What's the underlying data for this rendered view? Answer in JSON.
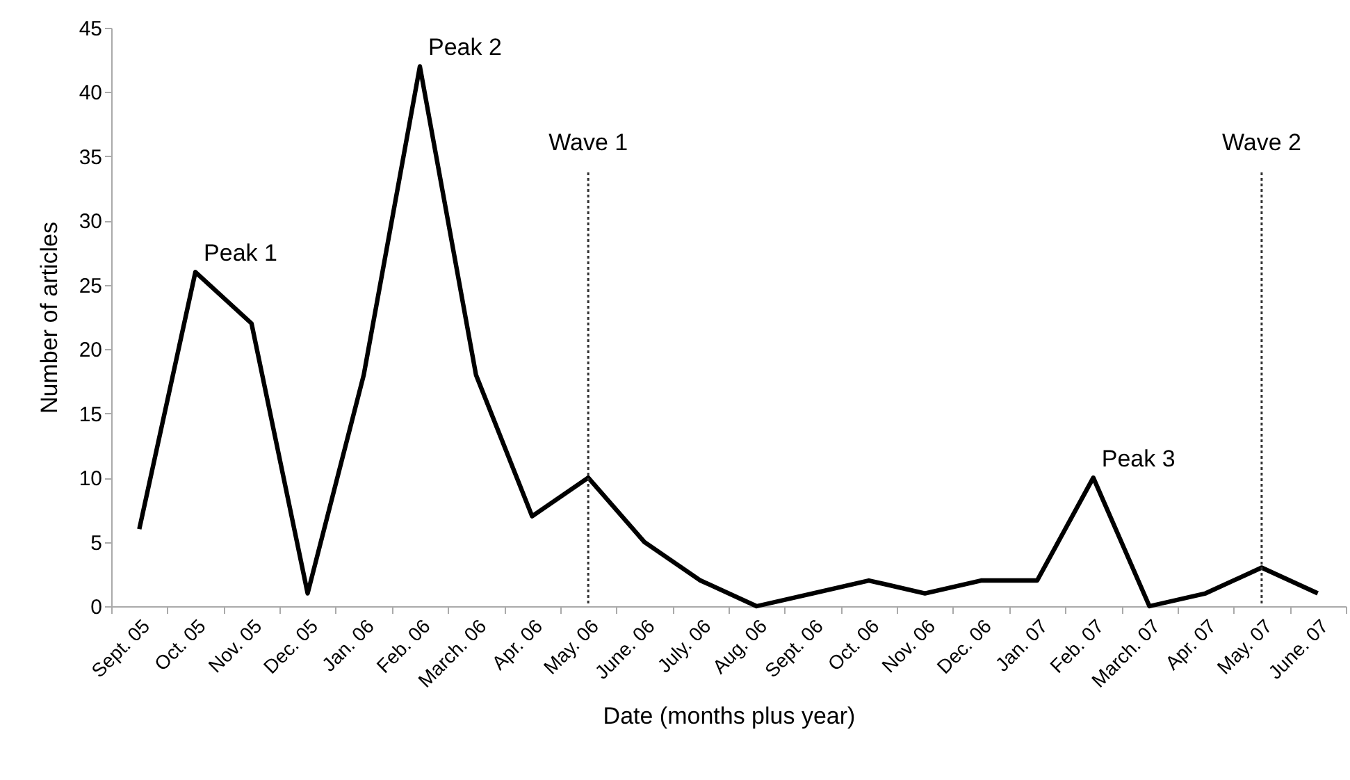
{
  "chart_data": {
    "type": "line",
    "xlabel": "Date (months plus year)",
    "ylabel": "Number of articles",
    "categories": [
      "Sept. 05",
      "Oct. 05",
      "Nov. 05",
      "Dec. 05",
      "Jan. 06",
      "Feb. 06",
      "March. 06",
      "Apr. 06",
      "May. 06",
      "June. 06",
      "July. 06",
      "Aug. 06",
      "Sept. 06",
      "Oct. 06",
      "Nov. 06",
      "Dec. 06",
      "Jan. 07",
      "Feb. 07",
      "March. 07",
      "Apr. 07",
      "May. 07",
      "June. 07"
    ],
    "series": [
      {
        "color": "#000000",
        "values": [
          6,
          26,
          22,
          1,
          18,
          42,
          18,
          7,
          10,
          5,
          2,
          0,
          1,
          2,
          1,
          2,
          2,
          10,
          0,
          1,
          3,
          1
        ]
      }
    ],
    "ylim": [
      0,
      45
    ],
    "yticks": [
      0,
      5,
      10,
      15,
      20,
      25,
      30,
      35,
      40,
      45
    ],
    "grid": false,
    "marker": "none",
    "line_style": "solid",
    "ref_lines": [
      {
        "axis": "x",
        "value": "May. 06",
        "label": "Wave 1",
        "color": "#333333",
        "line_style": "dotted"
      },
      {
        "axis": "x",
        "value": "May. 07",
        "label": "Wave 2",
        "color": "#333333",
        "line_style": "dotted"
      }
    ],
    "annotations": [
      {
        "text": "Peak 1",
        "x": "Oct. 05",
        "y": 26
      },
      {
        "text": "Peak 2",
        "x": "Feb. 06",
        "y": 42
      },
      {
        "text": "Peak 3",
        "x": "Feb. 07",
        "y": 10
      }
    ]
  }
}
